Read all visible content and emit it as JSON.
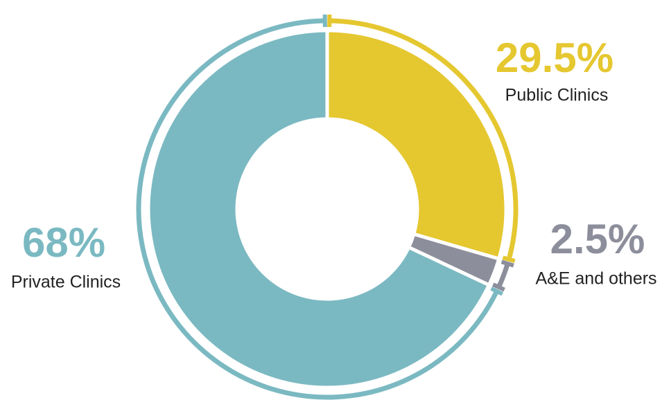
{
  "chart_data": {
    "type": "donut",
    "categories": [
      "Public Clinics",
      "A&E and others",
      "Private Clinics"
    ],
    "values": [
      29.5,
      2.5,
      68
    ],
    "value_labels": [
      "29.5%",
      "2.5%",
      "68%"
    ],
    "colors": [
      "#e5c730",
      "#8c8e9b",
      "#7bb9c2"
    ]
  }
}
